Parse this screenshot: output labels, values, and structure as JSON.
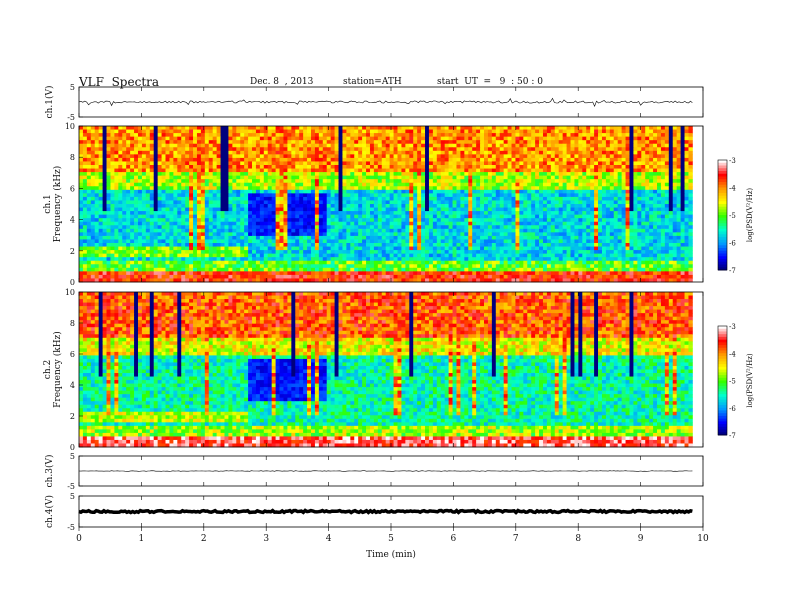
{
  "header": {
    "title": "VLF  Spectra",
    "date": "Dec. 8  , 2013",
    "station": "station=ATH",
    "start": "start  UT  =   9  : 50 : 0"
  },
  "chart_data": [
    {
      "type": "line",
      "panel": "ch1",
      "ylabel": "ch.1(V)",
      "ylim": [
        -5,
        5
      ],
      "y_ticks": [
        "5",
        "-5"
      ],
      "x_range_min": [
        0,
        9.83
      ],
      "baseline": 0.0,
      "color": "#000000"
    },
    {
      "type": "heatmap",
      "panel": "spectrogram-ch1",
      "ylabel": [
        "ch.1",
        "Frequency  (kHz)"
      ],
      "ylim": [
        0,
        10
      ],
      "y_ticks": [
        "0",
        "2",
        "4",
        "6",
        "8",
        "10"
      ],
      "x_range_min": [
        0,
        9.83
      ],
      "colorbar": {
        "label": "log(PSD(V²/Hz)",
        "range": [
          -7,
          -3
        ],
        "ticks": [
          "-3",
          "-4",
          "-5",
          "-6",
          "-7"
        ],
        "colormap": [
          "#000066",
          "#0000ff",
          "#0099ff",
          "#00ffcc",
          "#33ff00",
          "#ffff00",
          "#ff9900",
          "#ff0000",
          "#ffffff"
        ]
      },
      "notes_visible": "quiet region near 2.7-4.0 min, 3-5.5 kHz"
    },
    {
      "type": "heatmap",
      "panel": "spectrogram-ch2",
      "ylabel": [
        "ch.2",
        "Frequency  (kHz)"
      ],
      "ylim": [
        0,
        10
      ],
      "y_ticks": [
        "0",
        "2",
        "4",
        "6",
        "8",
        "10"
      ],
      "x_range_min": [
        0,
        9.83
      ],
      "colorbar": {
        "label": "log(PSD(V²/Hz)",
        "range": [
          -7,
          -3
        ],
        "ticks": [
          "-3",
          "-4",
          "-5",
          "-6",
          "-7"
        ]
      }
    },
    {
      "type": "line",
      "panel": "ch3",
      "ylabel": "ch.3(V)",
      "ylim": [
        -5,
        5
      ],
      "y_ticks": [
        "5",
        "-5"
      ],
      "x_range_min": [
        0,
        9.83
      ],
      "baseline": 0.0,
      "color": "#000000"
    },
    {
      "type": "line",
      "panel": "ch4",
      "ylabel": "ch.4(V)",
      "ylim": [
        -5,
        5
      ],
      "y_ticks": [
        "5",
        "-5"
      ],
      "x_range_min": [
        0,
        9.83
      ],
      "baseline": 0.0,
      "color": "#000000"
    }
  ],
  "xaxis": {
    "label": "Time  (min)",
    "range": [
      0,
      10
    ],
    "ticks": [
      "0",
      "1",
      "2",
      "3",
      "4",
      "5",
      "6",
      "7",
      "8",
      "9",
      "10"
    ]
  }
}
